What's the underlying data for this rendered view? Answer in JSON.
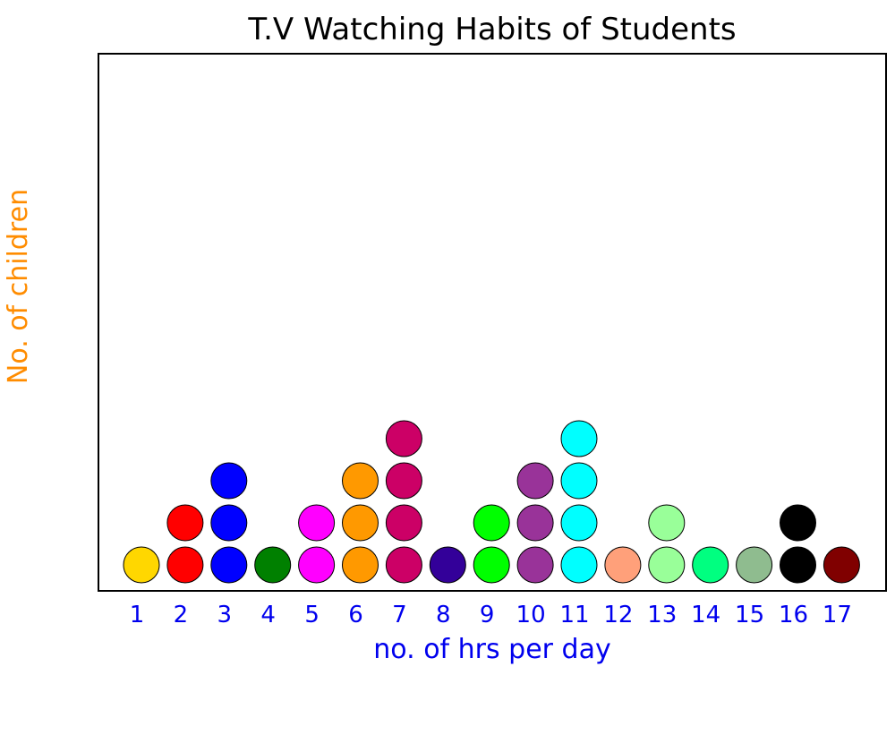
{
  "chart_data": {
    "type": "scatter",
    "subtype": "dot-plot",
    "title": "T.V Watching Habits of Students",
    "xlabel": "no. of hrs per day",
    "ylabel": "No. of children",
    "categories": [
      "1",
      "2",
      "3",
      "4",
      "5",
      "6",
      "7",
      "8",
      "9",
      "10",
      "11",
      "12",
      "13",
      "14",
      "15",
      "16",
      "17"
    ],
    "values": [
      1,
      2,
      3,
      1,
      2,
      3,
      4,
      1,
      2,
      3,
      4,
      1,
      2,
      1,
      1,
      2,
      1
    ],
    "dot_colors": [
      "#FFD700",
      "#FF0000",
      "#0000FF",
      "#008000",
      "#FF00FF",
      "#FF9900",
      "#CC0066",
      "#330099",
      "#00FF00",
      "#993399",
      "#00FFFF",
      "#FFA07A",
      "#99FF99",
      "#00FF80",
      "#8FBC8F",
      "#000000",
      "#800000"
    ],
    "ylim": [
      0,
      12
    ],
    "grid": false,
    "legend": "none"
  },
  "colors": {
    "title": "#000000",
    "xlabel": "#0000EE",
    "ylabel": "#FF8C00",
    "tick_labels": "#0000EE",
    "frame": "#000000"
  }
}
